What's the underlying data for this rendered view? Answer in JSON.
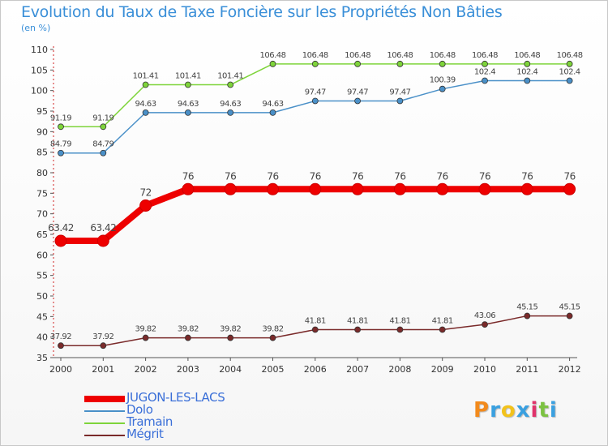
{
  "title": "Evolution du Taux de Taxe Foncière sur les Propriétés Non Bâties",
  "unit": "(en %)",
  "logo": {
    "text": "Proxiti",
    "letter_colors": [
      "#f28a1c",
      "#3aa0e0",
      "#f2c21c",
      "#3aa0e0",
      "#e0336b",
      "#7cc242",
      "#3aa0e0"
    ]
  },
  "chart_data": {
    "type": "line",
    "x": [
      "2000",
      "2001",
      "2002",
      "2003",
      "2004",
      "2005",
      "2006",
      "2007",
      "2008",
      "2009",
      "2010",
      "2011",
      "2012"
    ],
    "ylim": [
      35,
      110
    ],
    "yticks": [
      35,
      40,
      45,
      50,
      55,
      60,
      65,
      70,
      75,
      80,
      85,
      90,
      95,
      100,
      105,
      110
    ],
    "grid": false,
    "legend_position": "bottom-left",
    "series": [
      {
        "name": "JUGON-LES-LACS",
        "color": "#ee0000",
        "emphasis": true,
        "values": [
          63.42,
          63.42,
          72,
          76,
          76,
          76,
          76,
          76,
          76,
          76,
          76,
          76,
          76
        ],
        "labels": [
          "63.42",
          "63.42",
          "72",
          "76",
          "76",
          "76",
          "76",
          "76",
          "76",
          "76",
          "76",
          "76",
          "76"
        ]
      },
      {
        "name": "Dolo",
        "color": "#4a90c8",
        "emphasis": false,
        "values": [
          84.79,
          84.79,
          94.63,
          94.63,
          94.63,
          94.63,
          97.47,
          97.47,
          97.47,
          100.39,
          102.4,
          102.4,
          102.4
        ],
        "labels": [
          "84.79",
          "84.79",
          "94.63",
          "94.63",
          "94.63",
          "94.63",
          "97.47",
          "97.47",
          "97.47",
          "100.39",
          "102.4",
          "102.4",
          "102.4"
        ]
      },
      {
        "name": "Tramain",
        "color": "#7ed43a",
        "emphasis": false,
        "values": [
          91.19,
          91.19,
          101.41,
          101.41,
          101.41,
          106.48,
          106.48,
          106.48,
          106.48,
          106.48,
          106.48,
          106.48,
          106.48
        ],
        "labels": [
          "91.19",
          "91.19",
          "101.41",
          "101.41",
          "101.41",
          "106.48",
          "106.48",
          "106.48",
          "106.48",
          "106.48",
          "106.48",
          "106.48",
          "106.48"
        ]
      },
      {
        "name": "Mégrit",
        "color": "#7a2a2a",
        "emphasis": false,
        "values": [
          37.92,
          37.92,
          39.82,
          39.82,
          39.82,
          39.82,
          41.81,
          41.81,
          41.81,
          41.81,
          43.06,
          45.15,
          45.15
        ],
        "labels": [
          "37.92",
          "37.92",
          "39.82",
          "39.82",
          "39.82",
          "39.82",
          "41.81",
          "41.81",
          "41.81",
          "41.81",
          "43.06",
          "45.15",
          "45.15"
        ]
      }
    ]
  }
}
